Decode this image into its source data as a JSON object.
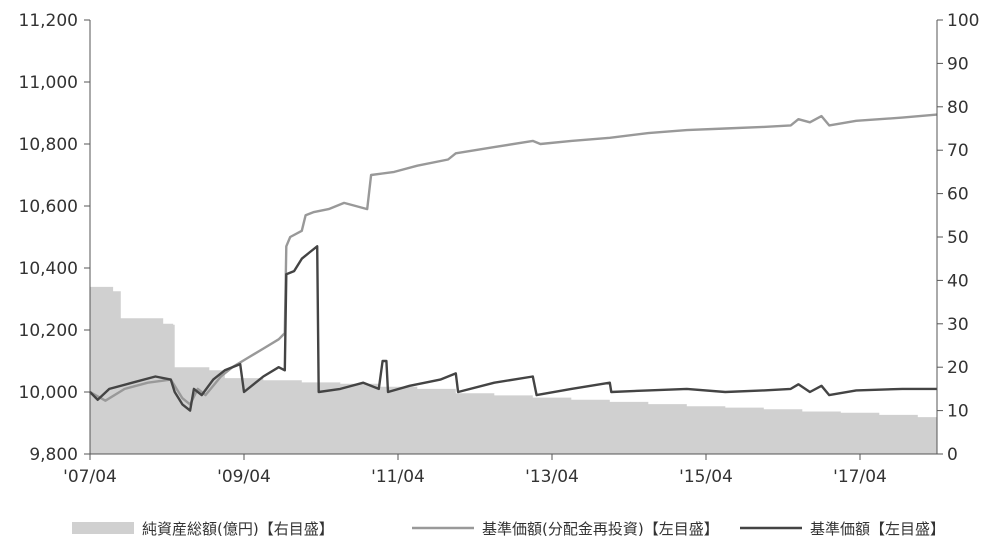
{
  "chart_data": {
    "type": "line",
    "title": "",
    "xlabel": "",
    "ylabel_left": "",
    "ylabel_right": "",
    "x_ticks": [
      "'07/04",
      "'09/04",
      "'11/04",
      "'13/04",
      "'15/04",
      "'17/04"
    ],
    "x_range": [
      2007.25,
      2018.25
    ],
    "ylim_left": [
      9800,
      11200
    ],
    "ylim_right": [
      0,
      100
    ],
    "yticks_left": [
      "9,800",
      "10,000",
      "10,200",
      "10,400",
      "10,600",
      "10,800",
      "11,000",
      "11,200"
    ],
    "yticks_right": [
      "0",
      "10",
      "20",
      "30",
      "40",
      "50",
      "60",
      "70",
      "80",
      "90",
      "100"
    ],
    "grid": false,
    "legend_position": "bottom-right",
    "series": [
      {
        "name": "純資産総額(億円)【右目盛】",
        "axis": "right",
        "kind": "area",
        "color": "#d0d0d0",
        "points": [
          [
            2007.25,
            38.5
          ],
          [
            2007.55,
            37.5
          ],
          [
            2007.65,
            31.3
          ],
          [
            2008.2,
            30.0
          ],
          [
            2008.33,
            29.8
          ],
          [
            2008.35,
            20.0
          ],
          [
            2008.8,
            19.3
          ],
          [
            2009.0,
            17.5
          ],
          [
            2009.5,
            17.0
          ],
          [
            2010.0,
            16.5
          ],
          [
            2010.5,
            16.2
          ],
          [
            2011.0,
            15.5
          ],
          [
            2011.5,
            15.0
          ],
          [
            2012.0,
            14.0
          ],
          [
            2012.5,
            13.5
          ],
          [
            2013.0,
            13.0
          ],
          [
            2013.5,
            12.5
          ],
          [
            2014.0,
            12.0
          ],
          [
            2014.5,
            11.5
          ],
          [
            2015.0,
            11.0
          ],
          [
            2015.5,
            10.7
          ],
          [
            2016.0,
            10.3
          ],
          [
            2016.5,
            9.8
          ],
          [
            2017.0,
            9.5
          ],
          [
            2017.5,
            9.0
          ],
          [
            2018.0,
            8.5
          ],
          [
            2018.25,
            8.2
          ]
        ]
      },
      {
        "name": "基準価額(分配金再投資)【左目盛】",
        "axis": "left",
        "kind": "line",
        "color": "#999999",
        "points": [
          [
            2007.25,
            10000
          ],
          [
            2007.45,
            9972
          ],
          [
            2007.7,
            10010
          ],
          [
            2008.0,
            10030
          ],
          [
            2008.3,
            10040
          ],
          [
            2008.35,
            10020
          ],
          [
            2008.45,
            9980
          ],
          [
            2008.55,
            9960
          ],
          [
            2008.65,
            10010
          ],
          [
            2008.75,
            9990
          ],
          [
            2008.95,
            10050
          ],
          [
            2009.1,
            10080
          ],
          [
            2009.3,
            10110
          ],
          [
            2009.5,
            10140
          ],
          [
            2009.7,
            10170
          ],
          [
            2009.78,
            10190
          ],
          [
            2009.8,
            10470
          ],
          [
            2009.85,
            10500
          ],
          [
            2010.0,
            10520
          ],
          [
            2010.05,
            10570
          ],
          [
            2010.15,
            10580
          ],
          [
            2010.35,
            10590
          ],
          [
            2010.55,
            10610
          ],
          [
            2010.7,
            10600
          ],
          [
            2010.85,
            10590
          ],
          [
            2010.9,
            10700
          ],
          [
            2011.2,
            10710
          ],
          [
            2011.5,
            10730
          ],
          [
            2011.9,
            10750
          ],
          [
            2012.0,
            10770
          ],
          [
            2012.5,
            10790
          ],
          [
            2013.0,
            10810
          ],
          [
            2013.1,
            10800
          ],
          [
            2013.5,
            10810
          ],
          [
            2014.0,
            10820
          ],
          [
            2014.5,
            10835
          ],
          [
            2015.0,
            10845
          ],
          [
            2015.5,
            10850
          ],
          [
            2016.0,
            10855
          ],
          [
            2016.35,
            10860
          ],
          [
            2016.45,
            10880
          ],
          [
            2016.6,
            10870
          ],
          [
            2016.75,
            10890
          ],
          [
            2016.85,
            10860
          ],
          [
            2017.2,
            10875
          ],
          [
            2017.8,
            10885
          ],
          [
            2018.25,
            10895
          ]
        ]
      },
      {
        "name": "基準価額【左目盛】",
        "axis": "left",
        "kind": "line",
        "color": "#444444",
        "points": [
          [
            2007.25,
            10000
          ],
          [
            2007.35,
            9975
          ],
          [
            2007.5,
            10010
          ],
          [
            2007.8,
            10030
          ],
          [
            2008.1,
            10050
          ],
          [
            2008.3,
            10040
          ],
          [
            2008.35,
            10000
          ],
          [
            2008.45,
            9960
          ],
          [
            2008.55,
            9940
          ],
          [
            2008.6,
            10010
          ],
          [
            2008.7,
            9990
          ],
          [
            2008.85,
            10040
          ],
          [
            2009.0,
            10070
          ],
          [
            2009.2,
            10090
          ],
          [
            2009.25,
            10000
          ],
          [
            2009.35,
            10020
          ],
          [
            2009.5,
            10050
          ],
          [
            2009.7,
            10080
          ],
          [
            2009.78,
            10070
          ],
          [
            2009.8,
            10380
          ],
          [
            2009.9,
            10390
          ],
          [
            2010.0,
            10430
          ],
          [
            2010.1,
            10450
          ],
          [
            2010.2,
            10470
          ],
          [
            2010.22,
            10000
          ],
          [
            2010.5,
            10010
          ],
          [
            2010.8,
            10030
          ],
          [
            2011.0,
            10010
          ],
          [
            2011.05,
            10100
          ],
          [
            2011.1,
            10100
          ],
          [
            2011.12,
            10000
          ],
          [
            2011.4,
            10020
          ],
          [
            2011.8,
            10040
          ],
          [
            2012.0,
            10060
          ],
          [
            2012.03,
            10000
          ],
          [
            2012.5,
            10030
          ],
          [
            2013.0,
            10050
          ],
          [
            2013.05,
            9990
          ],
          [
            2013.5,
            10010
          ],
          [
            2014.0,
            10030
          ],
          [
            2014.02,
            10000
          ],
          [
            2014.5,
            10005
          ],
          [
            2015.0,
            10010
          ],
          [
            2015.5,
            10000
          ],
          [
            2016.0,
            10005
          ],
          [
            2016.35,
            10010
          ],
          [
            2016.45,
            10025
          ],
          [
            2016.6,
            10000
          ],
          [
            2016.75,
            10020
          ],
          [
            2016.85,
            9990
          ],
          [
            2017.2,
            10005
          ],
          [
            2017.8,
            10010
          ],
          [
            2018.25,
            10010
          ]
        ]
      }
    ]
  }
}
